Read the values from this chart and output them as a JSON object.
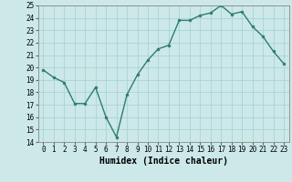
{
  "x": [
    0,
    1,
    2,
    3,
    4,
    5,
    6,
    7,
    8,
    9,
    10,
    11,
    12,
    13,
    14,
    15,
    16,
    17,
    18,
    19,
    20,
    21,
    22,
    23
  ],
  "y": [
    19.8,
    19.2,
    18.8,
    17.1,
    17.1,
    18.4,
    16.0,
    14.4,
    17.8,
    19.4,
    20.6,
    21.5,
    21.8,
    23.8,
    23.8,
    24.2,
    24.4,
    25.0,
    24.3,
    24.5,
    23.3,
    22.5,
    21.3,
    20.3
  ],
  "line_color": "#2e7d6e",
  "marker": "o",
  "markersize": 2.0,
  "linewidth": 1.0,
  "xlabel": "Humidex (Indice chaleur)",
  "ylim": [
    14,
    25
  ],
  "yticks": [
    14,
    15,
    16,
    17,
    18,
    19,
    20,
    21,
    22,
    23,
    24,
    25
  ],
  "xticks": [
    0,
    1,
    2,
    3,
    4,
    5,
    6,
    7,
    8,
    9,
    10,
    11,
    12,
    13,
    14,
    15,
    16,
    17,
    18,
    19,
    20,
    21,
    22,
    23
  ],
  "bg_color": "#cce8e8",
  "grid_color": "#aad4d4",
  "tick_fontsize": 5.5,
  "xlabel_fontsize": 7.0
}
